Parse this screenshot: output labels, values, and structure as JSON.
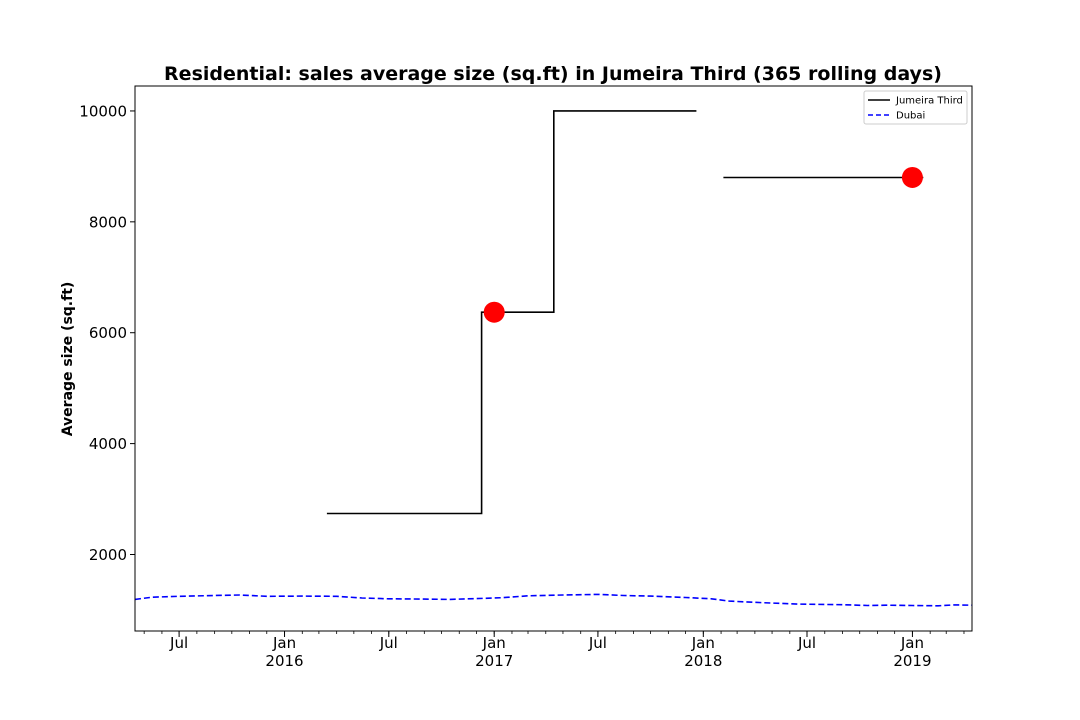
{
  "chart_data": {
    "type": "line",
    "title": "Residential: sales average size (sq.ft) in Jumeira Third (365 rolling days)",
    "xlabel": "",
    "ylabel": "Average size (sq.ft)",
    "xlim": [
      "2015-04-15",
      "2019-04-15"
    ],
    "ylim": [
      620,
      10450
    ],
    "yticks": [
      2000,
      4000,
      6000,
      8000,
      10000
    ],
    "xticks": [
      {
        "date": "2015-07-01",
        "label": "Jul",
        "sub": ""
      },
      {
        "date": "2016-01-01",
        "label": "Jan",
        "sub": "2016"
      },
      {
        "date": "2016-07-01",
        "label": "Jul",
        "sub": ""
      },
      {
        "date": "2017-01-01",
        "label": "Jan",
        "sub": "2017"
      },
      {
        "date": "2017-07-01",
        "label": "Jul",
        "sub": ""
      },
      {
        "date": "2018-01-01",
        "label": "Jan",
        "sub": "2018"
      },
      {
        "date": "2018-07-01",
        "label": "Jul",
        "sub": ""
      },
      {
        "date": "2019-01-01",
        "label": "Jan",
        "sub": "2019"
      }
    ],
    "grid": false,
    "legend_position": "top-right",
    "series": [
      {
        "name": "Jumeira Third",
        "color": "#000000",
        "style": "solid",
        "segments": [
          [
            {
              "x": "2016-03-15",
              "y": 2740
            },
            {
              "x": "2016-12-10",
              "y": 2740
            },
            {
              "x": "2016-12-10",
              "y": 6370
            },
            {
              "x": "2017-04-15",
              "y": 6370
            },
            {
              "x": "2017-04-15",
              "y": 10000
            },
            {
              "x": "2017-12-20",
              "y": 10000
            }
          ],
          [
            {
              "x": "2018-02-05",
              "y": 8800
            },
            {
              "x": "2019-01-20",
              "y": 8800
            }
          ]
        ]
      },
      {
        "name": "Dubai",
        "color": "#0000ff",
        "style": "dashed",
        "points": [
          {
            "x": "2015-04-15",
            "y": 1190
          },
          {
            "x": "2015-05-15",
            "y": 1230
          },
          {
            "x": "2015-07-01",
            "y": 1245
          },
          {
            "x": "2015-09-01",
            "y": 1260
          },
          {
            "x": "2015-10-15",
            "y": 1270
          },
          {
            "x": "2015-12-01",
            "y": 1245
          },
          {
            "x": "2016-02-01",
            "y": 1250
          },
          {
            "x": "2016-04-01",
            "y": 1245
          },
          {
            "x": "2016-05-15",
            "y": 1215
          },
          {
            "x": "2016-07-01",
            "y": 1200
          },
          {
            "x": "2016-09-01",
            "y": 1195
          },
          {
            "x": "2016-10-15",
            "y": 1190
          },
          {
            "x": "2016-12-01",
            "y": 1205
          },
          {
            "x": "2017-01-15",
            "y": 1220
          },
          {
            "x": "2017-03-01",
            "y": 1255
          },
          {
            "x": "2017-05-01",
            "y": 1270
          },
          {
            "x": "2017-07-01",
            "y": 1280
          },
          {
            "x": "2017-08-15",
            "y": 1260
          },
          {
            "x": "2017-10-01",
            "y": 1250
          },
          {
            "x": "2017-12-01",
            "y": 1225
          },
          {
            "x": "2018-01-15",
            "y": 1200
          },
          {
            "x": "2018-02-15",
            "y": 1160
          },
          {
            "x": "2018-04-15",
            "y": 1130
          },
          {
            "x": "2018-06-15",
            "y": 1105
          },
          {
            "x": "2018-09-01",
            "y": 1095
          },
          {
            "x": "2018-10-15",
            "y": 1080
          },
          {
            "x": "2018-11-15",
            "y": 1085
          },
          {
            "x": "2019-01-01",
            "y": 1080
          },
          {
            "x": "2019-02-15",
            "y": 1075
          },
          {
            "x": "2019-03-15",
            "y": 1090
          },
          {
            "x": "2019-04-15",
            "y": 1085
          }
        ]
      }
    ],
    "markers": [
      {
        "x": "2017-01-01",
        "y": 6370,
        "color": "#ff0000"
      },
      {
        "x": "2019-01-01",
        "y": 8800,
        "color": "#ff0000"
      }
    ]
  }
}
